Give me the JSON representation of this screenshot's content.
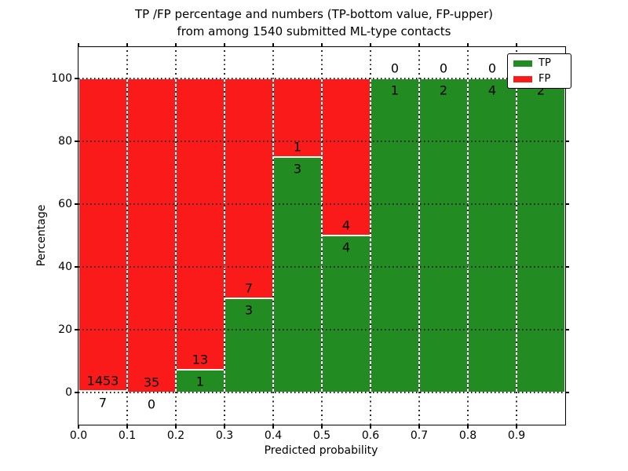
{
  "chart_data": {
    "type": "bar",
    "stacked": true,
    "normalized": "percentage",
    "title_line1": "TP /FP percentage and numbers (TP-bottom value, FP-upper)",
    "title_line2": "from among 1540 submitted ML-type contacts",
    "xlabel": "Predicted probability",
    "ylabel": "Percentage",
    "total_contacts": 1540,
    "x_ticks": [
      "0.0",
      "0.1",
      "0.2",
      "0.3",
      "0.4",
      "0.5",
      "0.6",
      "0.7",
      "0.8",
      "0.9"
    ],
    "y_ticks": [
      0,
      20,
      40,
      60,
      80,
      100
    ],
    "xlim": [
      0.0,
      1.0
    ],
    "ylim": [
      -10,
      110
    ],
    "bin_width": 0.1,
    "grid": true,
    "annotation_note": "TP count printed below stack boundary, FP count above it",
    "series": [
      {
        "name": "TP",
        "color": "#228b22",
        "counts": [
          7,
          0,
          1,
          3,
          3,
          4,
          1,
          2,
          4,
          2
        ]
      },
      {
        "name": "FP",
        "color": "#fb1a1a",
        "counts": [
          1453,
          35,
          13,
          7,
          1,
          4,
          0,
          0,
          0,
          0
        ]
      }
    ],
    "tp_percentages": [
      0.48,
      0.0,
      7.14,
      30.0,
      75.0,
      50.0,
      100.0,
      100.0,
      100.0,
      100.0
    ],
    "legend": {
      "position": "upper right",
      "entries": [
        {
          "label": "TP",
          "color": "#228b22"
        },
        {
          "label": "FP",
          "color": "#fb1a1a"
        }
      ]
    }
  }
}
